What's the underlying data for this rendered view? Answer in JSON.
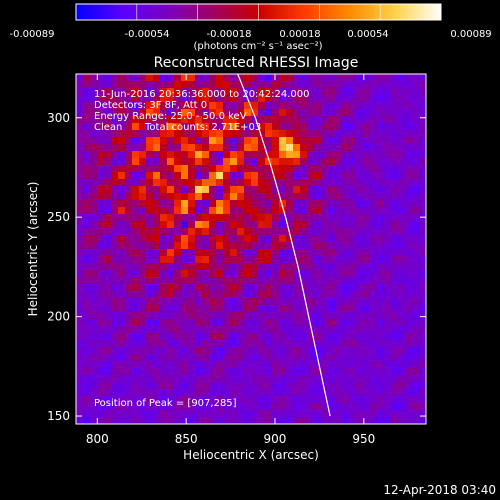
{
  "colors": {
    "background": "#000000",
    "foreground": "#ffffff",
    "colormap": [
      "#0000ff",
      "#5a00ff",
      "#7a00c0",
      "#a00060",
      "#c80000",
      "#ff3a00",
      "#ff8a00",
      "#ffd24a",
      "#ffffff"
    ]
  },
  "colorbar": {
    "tick_labels": [
      "-0.00089",
      "-0.00054",
      "-0.00018",
      "0.00018",
      "0.00054",
      "0.00089"
    ],
    "unit_label": "(photons cm⁻² s⁻¹ asec⁻²)"
  },
  "chart_data": {
    "type": "heatmap",
    "title": "Reconstructed RHESSI Image",
    "xlabel": "Heliocentric X (arcsec)",
    "ylabel": "Heliocentric Y (arcsec)",
    "xlim": [
      788,
      985
    ],
    "ylim": [
      146,
      322
    ],
    "x_ticks": [
      800,
      850,
      900,
      950
    ],
    "y_ticks": [
      150,
      200,
      250,
      300
    ],
    "value_range": [
      -0.00089,
      0.00089
    ],
    "colormap": "red-temperature",
    "limb_curve": [
      [
        879,
        322
      ],
      [
        889,
        300
      ],
      [
        898,
        275
      ],
      [
        906,
        250
      ],
      [
        913,
        225
      ],
      [
        919,
        200
      ],
      [
        925,
        175
      ],
      [
        931,
        150
      ]
    ],
    "peak_position": [
      907,
      285
    ],
    "annotations": {
      "time_range": "11-Jun-2016 20:36:36.000 to 20:42:24.000",
      "detectors": "Detectors: 3F 8F, Att 0",
      "energy_range": "Energy Range: 25.0 - 50.0 keV",
      "method": "Clean",
      "total_counts": "Total counts: 2.71E+03",
      "peak_label": "Position of Peak = [907,285]"
    }
  },
  "footer": {
    "timestamp": "12-Apr-2018 03:40"
  }
}
